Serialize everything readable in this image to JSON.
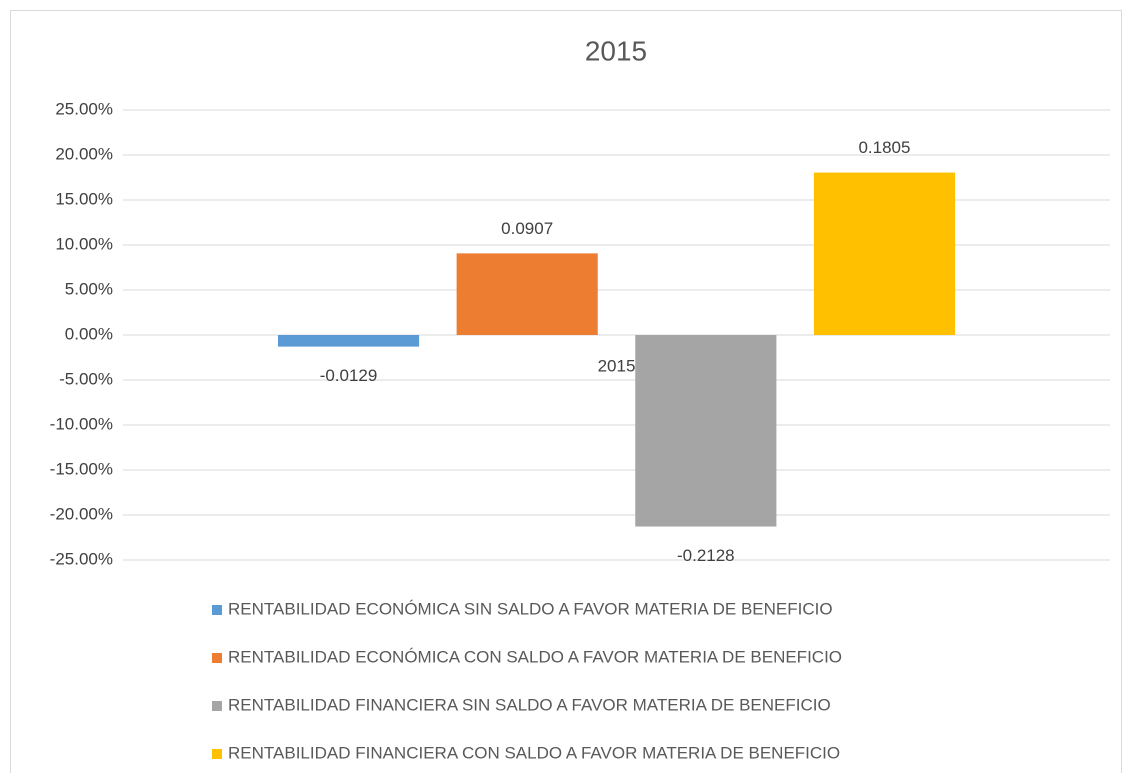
{
  "chart_data": {
    "type": "bar",
    "title": "2015",
    "categories": [
      "2015"
    ],
    "series": [
      {
        "name": "RENTABILIDAD ECONÓMICA SIN SALDO A FAVOR MATERIA DE BENEFICIO",
        "color": "#5b9bd5",
        "values": [
          -1.29
        ],
        "value_labels": [
          "-0.0129"
        ]
      },
      {
        "name": "RENTABILIDAD ECONÓMICA CON SALDO A FAVOR MATERIA DE BENEFICIO",
        "color": "#ed7d31",
        "values": [
          9.07
        ],
        "value_labels": [
          "0.0907"
        ]
      },
      {
        "name": "RENTABILIDAD FINANCIERA SIN SALDO A FAVOR MATERIA DE BENEFICIO",
        "color": "#a5a5a5",
        "values": [
          -21.28
        ],
        "value_labels": [
          "-0.2128"
        ]
      },
      {
        "name": "RENTABILIDAD FINANCIERA CON SALDO A FAVOR MATERIA DE BENEFICIO",
        "color": "#ffc000",
        "values": [
          18.05
        ],
        "value_labels": [
          "0.1805"
        ]
      }
    ],
    "ylim": [
      -25,
      25
    ],
    "yticks": [
      {
        "value": -25,
        "label": "-25.00%"
      },
      {
        "value": -20,
        "label": "-20.00%"
      },
      {
        "value": -15,
        "label": "-15.00%"
      },
      {
        "value": -10,
        "label": "-10.00%"
      },
      {
        "value": -5,
        "label": "-5.00%"
      },
      {
        "value": 0,
        "label": "0.00%"
      },
      {
        "value": 5,
        "label": "5.00%"
      },
      {
        "value": 10,
        "label": "10.00%"
      },
      {
        "value": 15,
        "label": "15.00%"
      },
      {
        "value": 20,
        "label": "20.00%"
      },
      {
        "value": 25,
        "label": "25.00%"
      }
    ],
    "grid": true,
    "legend": "bottom"
  }
}
